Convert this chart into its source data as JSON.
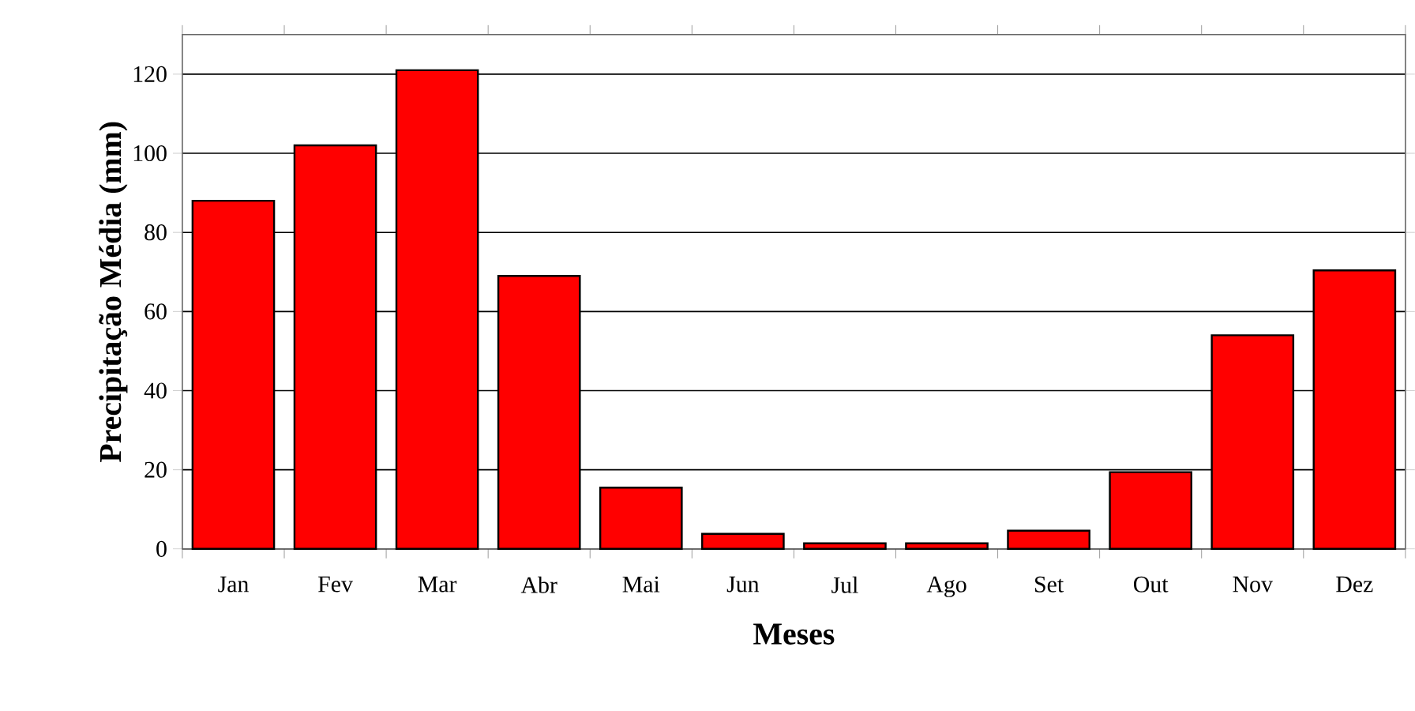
{
  "chart_data": {
    "type": "bar",
    "xlabel": "Meses",
    "ylabel": "Precipitação Média (mm)",
    "categories": [
      "Jan",
      "Fev",
      "Mar",
      "Abr",
      "Mai",
      "Jun",
      "Jul",
      "Ago",
      "Set",
      "Out",
      "Nov",
      "Dez"
    ],
    "values": [
      88,
      102,
      121,
      69,
      15.5,
      3.8,
      1.4,
      1.4,
      4.6,
      19.4,
      54,
      70.4
    ],
    "color": "#ff0000",
    "ylim": [
      0,
      130
    ],
    "yticks": [
      0,
      20,
      40,
      60,
      80,
      100,
      120
    ],
    "grid": "y"
  }
}
